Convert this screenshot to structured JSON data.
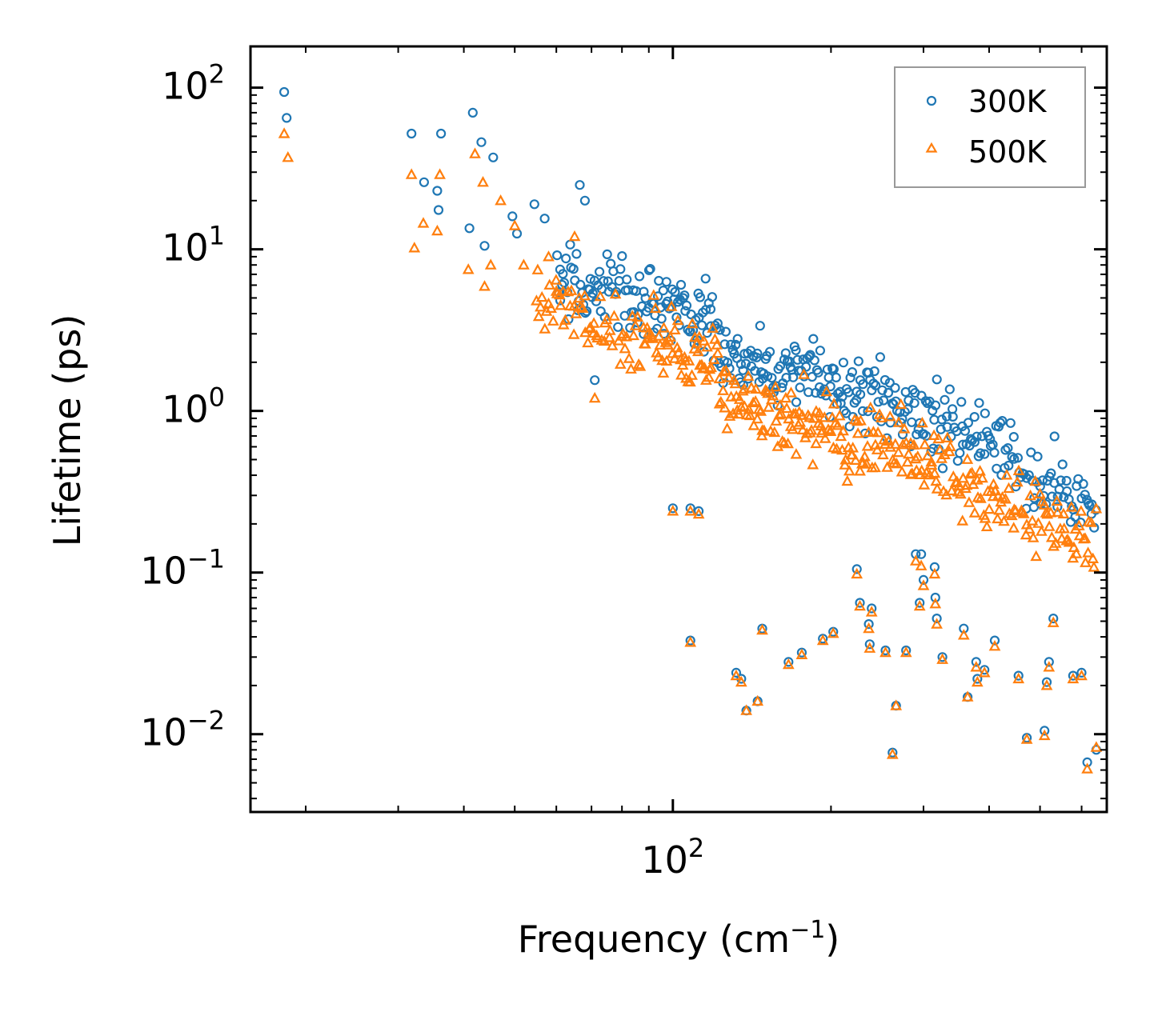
{
  "chart_data": {
    "type": "scatter",
    "title": "",
    "xlabel": "Frequency (cm",
    "xlabel_sup": "−1",
    "xlabel_suffix": ")",
    "ylabel": "Lifetime (ps)",
    "xscale": "log",
    "yscale": "log",
    "xlim": [
      15.7,
      670
    ],
    "ylim": [
      0.0033,
      180
    ],
    "x_major_ticks": [
      {
        "value": 100,
        "base": "10",
        "exp": "2"
      }
    ],
    "y_major_ticks": [
      {
        "value": 0.01,
        "base": "10",
        "exp": "−2"
      },
      {
        "value": 0.1,
        "base": "10",
        "exp": "−1"
      },
      {
        "value": 1,
        "base": "10",
        "exp": "0"
      },
      {
        "value": 10,
        "base": "10",
        "exp": "1"
      },
      {
        "value": 100,
        "base": "10",
        "exp": "2"
      }
    ],
    "legend_position": "top-right",
    "series": [
      {
        "name": "300K",
        "color": "#1f77b4",
        "marker": "circle",
        "outliers": [
          [
            18.2,
            94
          ],
          [
            18.4,
            65
          ],
          [
            31.8,
            52
          ],
          [
            33.6,
            26
          ],
          [
            35.6,
            23
          ],
          [
            35.8,
            17.5
          ],
          [
            36.2,
            52
          ],
          [
            41.0,
            13.5
          ],
          [
            41.6,
            70
          ],
          [
            43.2,
            46
          ],
          [
            43.8,
            10.5
          ],
          [
            45.5,
            37
          ],
          [
            49.5,
            16
          ],
          [
            50.5,
            12.5
          ],
          [
            54.5,
            19
          ],
          [
            57.0,
            15.5
          ],
          [
            61.0,
            7.5
          ],
          [
            66.5,
            25
          ],
          [
            68.0,
            20
          ],
          [
            71.0,
            1.55
          ]
        ],
        "clusters": [
          {
            "x0": 60,
            "x1": 88,
            "y0": 7.0,
            "y1": 4.2,
            "n": 60
          },
          {
            "x0": 88,
            "x1": 122,
            "y0": 5.5,
            "y1": 3.5,
            "n": 60
          },
          {
            "x0": 122,
            "x1": 165,
            "y0": 2.3,
            "y1": 1.7,
            "n": 55
          },
          {
            "x0": 165,
            "x1": 230,
            "y0": 2.0,
            "y1": 1.2,
            "n": 60
          },
          {
            "x0": 230,
            "x1": 320,
            "y0": 1.3,
            "y1": 0.85,
            "n": 55
          },
          {
            "x0": 320,
            "x1": 440,
            "y0": 0.8,
            "y1": 0.5,
            "n": 50
          },
          {
            "x0": 440,
            "x1": 640,
            "y0": 0.48,
            "y1": 0.28,
            "n": 55
          }
        ],
        "low_points": [
          [
            100,
            0.25
          ],
          [
            108,
            0.25
          ],
          [
            112,
            0.24
          ],
          [
            108,
            0.038
          ],
          [
            132,
            0.024
          ],
          [
            135,
            0.022
          ],
          [
            138,
            0.014
          ],
          [
            145,
            0.016
          ],
          [
            148,
            0.045
          ],
          [
            166,
            0.028
          ],
          [
            176,
            0.032
          ],
          [
            193,
            0.039
          ],
          [
            202,
            0.043
          ],
          [
            224,
            0.105
          ],
          [
            227,
            0.065
          ],
          [
            236,
            0.048
          ],
          [
            237,
            0.036
          ],
          [
            239,
            0.06
          ],
          [
            254,
            0.033
          ],
          [
            262,
            0.0077
          ],
          [
            266,
            0.015
          ],
          [
            278,
            0.033
          ],
          [
            290,
            0.13
          ],
          [
            295,
            0.065
          ],
          [
            297,
            0.13
          ],
          [
            300,
            0.09
          ],
          [
            315,
            0.108
          ],
          [
            316,
            0.07
          ],
          [
            318,
            0.052
          ],
          [
            326,
            0.03
          ],
          [
            358,
            0.045
          ],
          [
            364,
            0.017
          ],
          [
            378,
            0.028
          ],
          [
            380,
            0.022
          ],
          [
            392,
            0.025
          ],
          [
            410,
            0.038
          ],
          [
            455,
            0.023
          ],
          [
            472,
            0.0095
          ],
          [
            510,
            0.0105
          ],
          [
            515,
            0.021
          ],
          [
            520,
            0.028
          ],
          [
            530,
            0.052
          ],
          [
            578,
            0.023
          ],
          [
            600,
            0.024
          ],
          [
            615,
            0.0067
          ],
          [
            640,
            0.008
          ]
        ]
      },
      {
        "name": "500K",
        "color": "#ff7f0e",
        "marker": "triangle",
        "outliers": [
          [
            18.2,
            52
          ],
          [
            18.5,
            37
          ],
          [
            31.8,
            29
          ],
          [
            32.2,
            10.2
          ],
          [
            33.5,
            14.5
          ],
          [
            35.6,
            13
          ],
          [
            36.0,
            29
          ],
          [
            40.8,
            7.5
          ],
          [
            42.0,
            39
          ],
          [
            43.5,
            26
          ],
          [
            43.8,
            5.9
          ],
          [
            45.0,
            8.0
          ],
          [
            47.0,
            20
          ],
          [
            50.0,
            14
          ],
          [
            52.0,
            8.0
          ],
          [
            55.0,
            4.8
          ],
          [
            58.0,
            9.0
          ],
          [
            60.0,
            5.5
          ],
          [
            65.0,
            12
          ],
          [
            71.0,
            1.2
          ]
        ],
        "clusters": [
          {
            "x0": 55,
            "x1": 88,
            "y0": 5.0,
            "y1": 2.6,
            "n": 60
          },
          {
            "x0": 88,
            "x1": 122,
            "y0": 3.0,
            "y1": 2.0,
            "n": 60
          },
          {
            "x0": 122,
            "x1": 165,
            "y0": 1.3,
            "y1": 0.9,
            "n": 55
          },
          {
            "x0": 165,
            "x1": 230,
            "y0": 1.0,
            "y1": 0.62,
            "n": 60
          },
          {
            "x0": 230,
            "x1": 320,
            "y0": 0.68,
            "y1": 0.45,
            "n": 55
          },
          {
            "x0": 320,
            "x1": 440,
            "y0": 0.42,
            "y1": 0.28,
            "n": 50
          },
          {
            "x0": 440,
            "x1": 640,
            "y0": 0.25,
            "y1": 0.17,
            "n": 55
          }
        ],
        "low_points": [
          [
            100,
            0.24
          ],
          [
            108,
            0.24
          ],
          [
            112,
            0.23
          ],
          [
            108,
            0.037
          ],
          [
            132,
            0.023
          ],
          [
            135,
            0.021
          ],
          [
            138,
            0.014
          ],
          [
            145,
            0.016
          ],
          [
            148,
            0.044
          ],
          [
            166,
            0.027
          ],
          [
            176,
            0.031
          ],
          [
            193,
            0.038
          ],
          [
            202,
            0.042
          ],
          [
            224,
            0.098
          ],
          [
            227,
            0.062
          ],
          [
            236,
            0.045
          ],
          [
            237,
            0.034
          ],
          [
            239,
            0.057
          ],
          [
            254,
            0.032
          ],
          [
            262,
            0.0075
          ],
          [
            266,
            0.015
          ],
          [
            278,
            0.032
          ],
          [
            290,
            0.118
          ],
          [
            295,
            0.062
          ],
          [
            297,
            0.11
          ],
          [
            300,
            0.083
          ],
          [
            315,
            0.098
          ],
          [
            316,
            0.064
          ],
          [
            318,
            0.048
          ],
          [
            326,
            0.029
          ],
          [
            358,
            0.041
          ],
          [
            364,
            0.017
          ],
          [
            378,
            0.026
          ],
          [
            380,
            0.021
          ],
          [
            392,
            0.024
          ],
          [
            410,
            0.035
          ],
          [
            455,
            0.022
          ],
          [
            472,
            0.0093
          ],
          [
            510,
            0.0098
          ],
          [
            515,
            0.02
          ],
          [
            520,
            0.026
          ],
          [
            530,
            0.049
          ],
          [
            578,
            0.022
          ],
          [
            600,
            0.023
          ],
          [
            615,
            0.0061
          ],
          [
            640,
            0.0083
          ]
        ]
      }
    ]
  }
}
